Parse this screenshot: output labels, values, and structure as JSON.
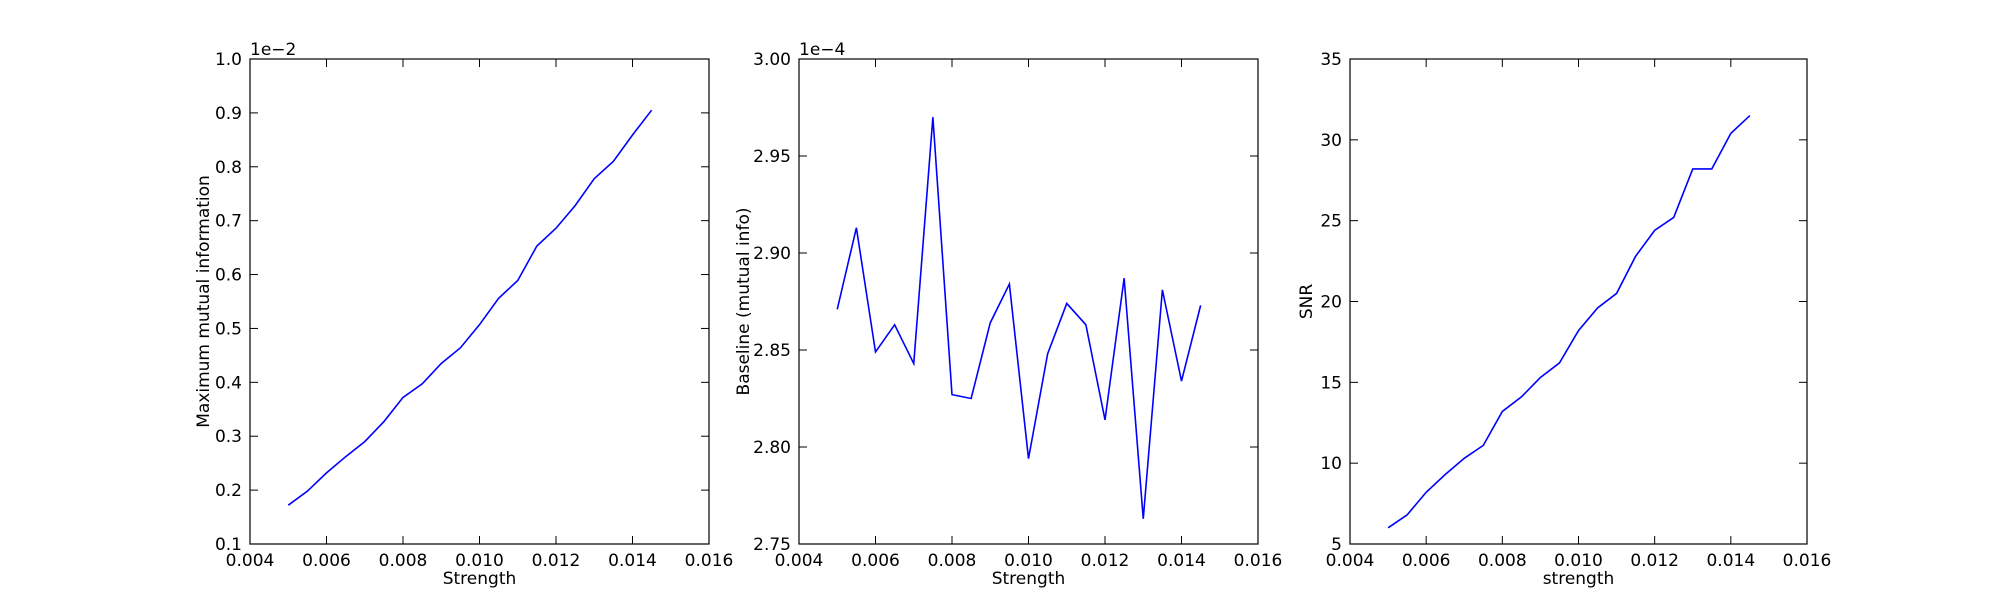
{
  "figure": {
    "background": "#ffffff",
    "line_color": "#0000ff"
  },
  "chart_data": [
    {
      "type": "line",
      "xlabel": "Strength",
      "ylabel": "Maximum mutual information",
      "offset_text": "1e−2",
      "xlim": [
        0.004,
        0.016
      ],
      "ylim": [
        0.1,
        1.0
      ],
      "xticks": [
        0.004,
        0.006,
        0.008,
        0.01,
        0.012,
        0.014,
        0.016
      ],
      "xtick_labels": [
        "0.004",
        "0.006",
        "0.008",
        "0.010",
        "0.012",
        "0.014",
        "0.016"
      ],
      "yticks": [
        0.1,
        0.2,
        0.3,
        0.4,
        0.5,
        0.6,
        0.7,
        0.8,
        0.9,
        1.0
      ],
      "ytick_labels": [
        "0.1",
        "0.2",
        "0.3",
        "0.4",
        "0.5",
        "0.6",
        "0.7",
        "0.8",
        "0.9",
        "1.0"
      ],
      "grid": false,
      "series": [
        {
          "x": [
            0.005,
            0.0055,
            0.006,
            0.0065,
            0.007,
            0.0075,
            0.008,
            0.0085,
            0.009,
            0.0095,
            0.01,
            0.0105,
            0.011,
            0.0115,
            0.012,
            0.0125,
            0.013,
            0.0135,
            0.014,
            0.0145
          ],
          "y": [
            0.172,
            0.198,
            0.232,
            0.262,
            0.29,
            0.327,
            0.372,
            0.397,
            0.435,
            0.464,
            0.507,
            0.556,
            0.589,
            0.653,
            0.686,
            0.728,
            0.778,
            0.81,
            0.859,
            0.905
          ]
        }
      ]
    },
    {
      "type": "line",
      "xlabel": "Strength",
      "ylabel": "Baseline (mutual info)",
      "offset_text": "1e−4",
      "xlim": [
        0.004,
        0.016
      ],
      "ylim": [
        2.75,
        3.0
      ],
      "xticks": [
        0.004,
        0.006,
        0.008,
        0.01,
        0.012,
        0.014,
        0.016
      ],
      "xtick_labels": [
        "0.004",
        "0.006",
        "0.008",
        "0.010",
        "0.012",
        "0.014",
        "0.016"
      ],
      "yticks": [
        2.75,
        2.8,
        2.85,
        2.9,
        2.95,
        3.0
      ],
      "ytick_labels": [
        "2.75",
        "2.80",
        "2.85",
        "2.90",
        "2.95",
        "3.00"
      ],
      "grid": false,
      "series": [
        {
          "x": [
            0.005,
            0.0055,
            0.006,
            0.0065,
            0.007,
            0.0075,
            0.008,
            0.0085,
            0.009,
            0.0095,
            0.01,
            0.0105,
            0.011,
            0.0115,
            0.012,
            0.0125,
            0.013,
            0.0135,
            0.014,
            0.0145
          ],
          "y": [
            2.871,
            2.913,
            2.849,
            2.863,
            2.843,
            2.97,
            2.827,
            2.825,
            2.864,
            2.884,
            2.794,
            2.848,
            2.874,
            2.863,
            2.814,
            2.887,
            2.763,
            2.881,
            2.834,
            2.873
          ]
        }
      ]
    },
    {
      "type": "line",
      "xlabel": "strength",
      "ylabel": "SNR",
      "offset_text": "",
      "xlim": [
        0.004,
        0.016
      ],
      "ylim": [
        5,
        35
      ],
      "xticks": [
        0.004,
        0.006,
        0.008,
        0.01,
        0.012,
        0.014,
        0.016
      ],
      "xtick_labels": [
        "0.004",
        "0.006",
        "0.008",
        "0.010",
        "0.012",
        "0.014",
        "0.016"
      ],
      "yticks": [
        5,
        10,
        15,
        20,
        25,
        30,
        35
      ],
      "ytick_labels": [
        "5",
        "10",
        "15",
        "20",
        "25",
        "30",
        "35"
      ],
      "grid": false,
      "series": [
        {
          "x": [
            0.005,
            0.0055,
            0.006,
            0.0065,
            0.007,
            0.0075,
            0.008,
            0.0085,
            0.009,
            0.0095,
            0.01,
            0.0105,
            0.011,
            0.0115,
            0.012,
            0.0125,
            0.013,
            0.0135,
            0.014,
            0.0145
          ],
          "y": [
            6.0,
            6.8,
            8.2,
            9.3,
            10.3,
            11.1,
            13.2,
            14.1,
            15.3,
            16.2,
            18.2,
            19.6,
            20.5,
            22.8,
            24.4,
            25.2,
            28.2,
            28.2,
            30.4,
            31.5
          ]
        }
      ]
    }
  ]
}
